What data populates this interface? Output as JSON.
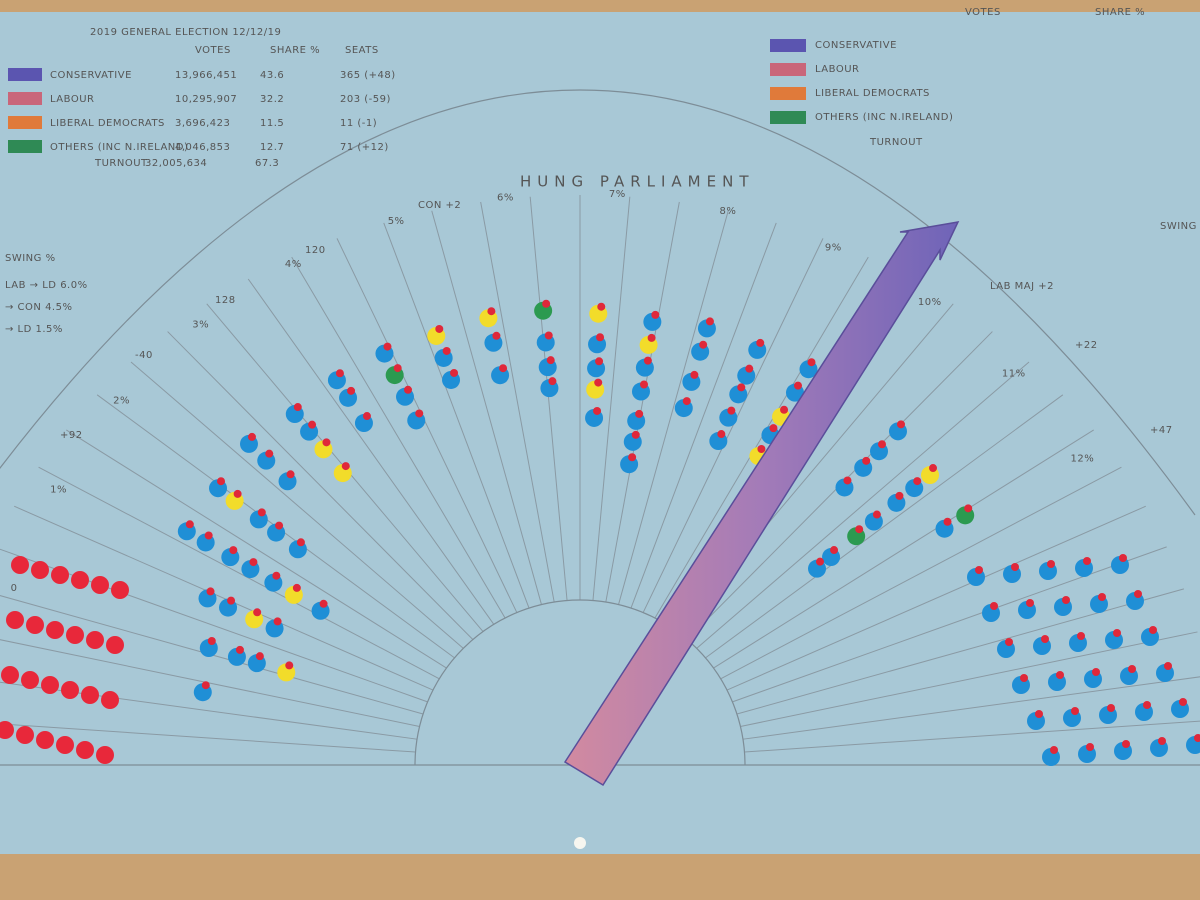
{
  "header": {
    "title": "2019 GENERAL ELECTION 12/12/19"
  },
  "table": {
    "columns": [
      "VOTES",
      "SHARE %",
      "SEATS"
    ],
    "rows": [
      [
        "CONSERVATIVE",
        "13,966,451",
        "43.6",
        "365 (+48)"
      ],
      [
        "LABOUR",
        "10,295,907",
        "32.2",
        "203 (-59)"
      ],
      [
        "LIBERAL DEMOCRATS",
        "3,696,423",
        "11.5",
        "11 (-1)"
      ],
      [
        "OTHERS (INC N.IRELAND)",
        "4,046,853",
        "12.7",
        "71 (+12)"
      ]
    ],
    "turnout": [
      "TURNOUT",
      "32,005,634",
      "67.3"
    ]
  },
  "legend": {
    "columns": [
      "VOTES",
      "SHARE %"
    ],
    "items": [
      "CONSERVATIVE",
      "LABOUR",
      "LIBERAL DEMOCRATS",
      "OTHERS (INC N.IRELAND)"
    ],
    "turnout": "TURNOUT"
  },
  "swings": {
    "title": "SWING %",
    "rows": [
      "LAB → LD 6.0%",
      "→ CON 4.5%",
      "→ LD 1.5%"
    ]
  },
  "side_label": "SWING",
  "fan": {
    "title": "HUNG PARLIAMENT",
    "left_marker": "CON +2",
    "right_marker": "LAB MAJ +2",
    "percent_labels": [
      "0",
      "1%",
      "2%",
      "3%",
      "4%",
      "5%",
      "6%",
      "7%",
      "8%",
      "9%",
      "10%",
      "11%",
      "12%"
    ],
    "number_labels": [
      "+92",
      "-40",
      "128",
      "120",
      "+22",
      "+47"
    ]
  }
}
